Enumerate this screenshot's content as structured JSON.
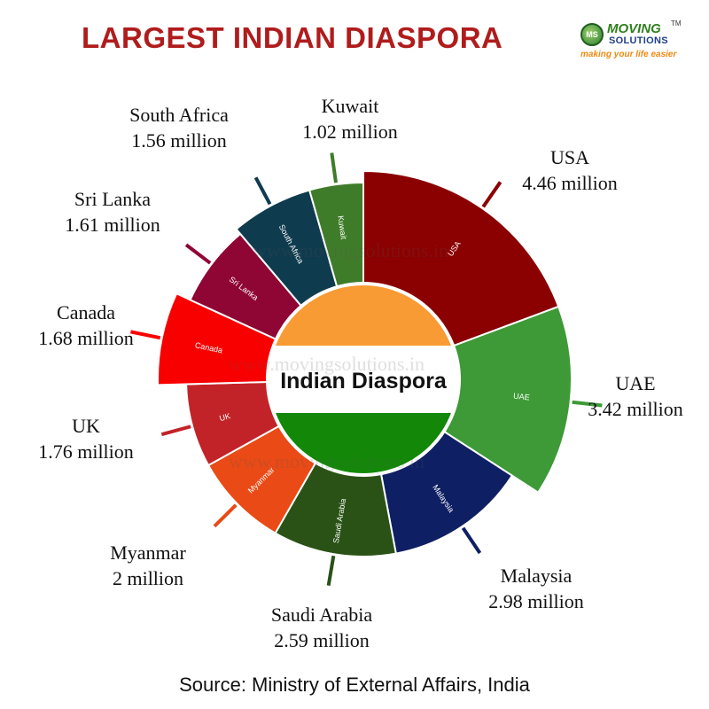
{
  "title": "LARGEST INDIAN DIASPORA",
  "logo": {
    "name_line1": "MOVING",
    "name_line2": "SOLUTIONS",
    "trademark": "TM",
    "badge": "MS",
    "tagline": "making your life easier"
  },
  "center_label": "Indian Diaspora",
  "watermark": "www.movingsolutions.in",
  "source": "Source: Ministry of External Affairs, India",
  "colors": {
    "saffron": "#f99b35",
    "white": "#ffffff",
    "green": "#138808",
    "title": "#b01c1c"
  },
  "chart_data": {
    "type": "pie",
    "units": "million",
    "categories": [
      "USA",
      "UAE",
      "Malaysia",
      "Saudi Arabia",
      "Myanmar",
      "UK",
      "Canada",
      "Sri Lanka",
      "South Africa",
      "Kuwait"
    ],
    "values": [
      4.46,
      3.42,
      2.98,
      2.59,
      2,
      1.76,
      1.68,
      1.61,
      1.56,
      1.02
    ],
    "value_labels": [
      "4.46 million",
      "3.42 million",
      "2.98 million",
      "2.59 million",
      "2 million",
      "1.76 million",
      "1.68 million",
      "1.61 million",
      "1.56 million",
      "1.02 million"
    ],
    "colors": [
      "#8b0000",
      "#3d9a36",
      "#0e1f63",
      "#2a5216",
      "#ea4a15",
      "#c22328",
      "#f90000",
      "#8f0634",
      "#0f3b4e",
      "#3f7c29"
    ],
    "legend": "none"
  }
}
